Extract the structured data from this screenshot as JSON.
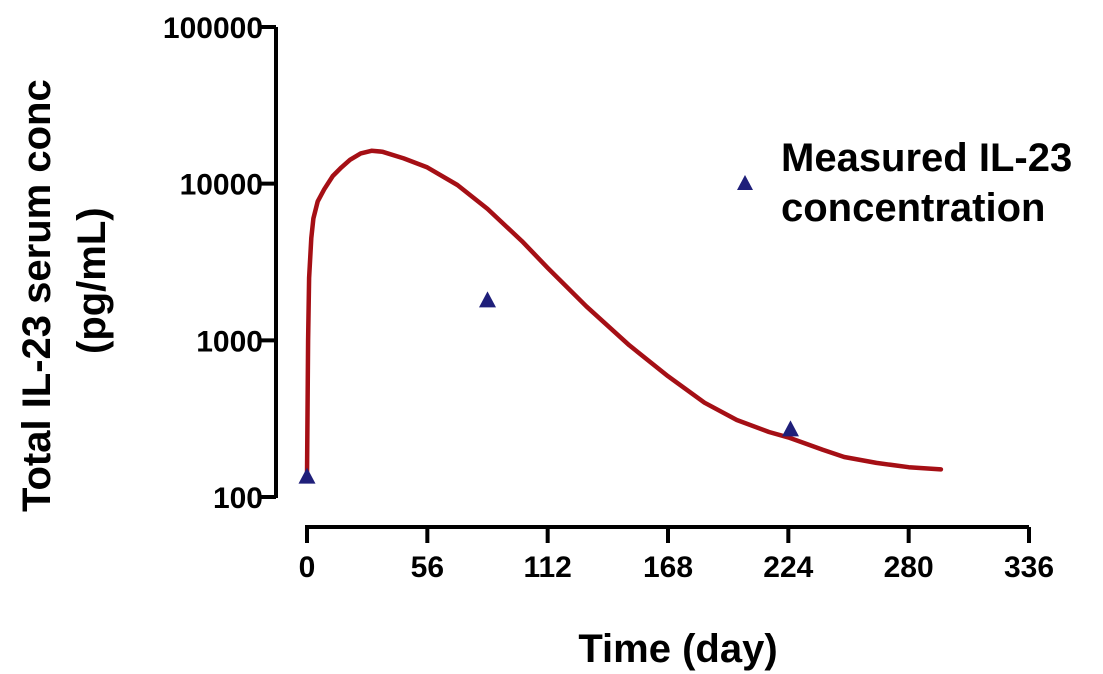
{
  "chart_data": {
    "type": "line",
    "xlabel": "Time (day)",
    "ylabel_lines": [
      "Total IL-23 serum conc",
      "(pg/mL)"
    ],
    "xlim": [
      0,
      336
    ],
    "ylim": [
      100,
      100000
    ],
    "yscale": "log",
    "x_ticks": [
      0,
      56,
      112,
      168,
      224,
      280,
      336
    ],
    "y_ticks": [
      100,
      1000,
      10000,
      100000
    ],
    "y_tick_labels": [
      "100",
      "1000",
      "10000",
      "100000"
    ],
    "grid": false,
    "legend_position": "top-right",
    "series": [
      {
        "kind": "line",
        "color": "#a50f15",
        "points": [
          [
            0,
            135
          ],
          [
            0.5,
            1000
          ],
          [
            1,
            2500
          ],
          [
            2,
            4500
          ],
          [
            3,
            6000
          ],
          [
            5,
            7700
          ],
          [
            8,
            9200
          ],
          [
            12,
            11200
          ],
          [
            16,
            12700
          ],
          [
            20,
            14200
          ],
          [
            25,
            15600
          ],
          [
            30,
            16200
          ],
          [
            35,
            16000
          ],
          [
            45,
            14500
          ],
          [
            56,
            12700
          ],
          [
            70,
            9800
          ],
          [
            84,
            6900
          ],
          [
            100,
            4300
          ],
          [
            112,
            2900
          ],
          [
            130,
            1650
          ],
          [
            150,
            930
          ],
          [
            168,
            590
          ],
          [
            185,
            400
          ],
          [
            200,
            310
          ],
          [
            215,
            260
          ],
          [
            224,
            240
          ],
          [
            240,
            200
          ],
          [
            250,
            180
          ],
          [
            265,
            165
          ],
          [
            280,
            155
          ],
          [
            295,
            150
          ]
        ]
      },
      {
        "name": "Measured IL-23 concentration",
        "legend_lines": [
          "Measured IL-23",
          "concentration"
        ],
        "kind": "scatter",
        "marker": "triangle",
        "color": "#1f1f7a",
        "points": [
          [
            0,
            135
          ],
          [
            84,
            1800
          ],
          [
            225,
            270
          ]
        ]
      }
    ]
  }
}
